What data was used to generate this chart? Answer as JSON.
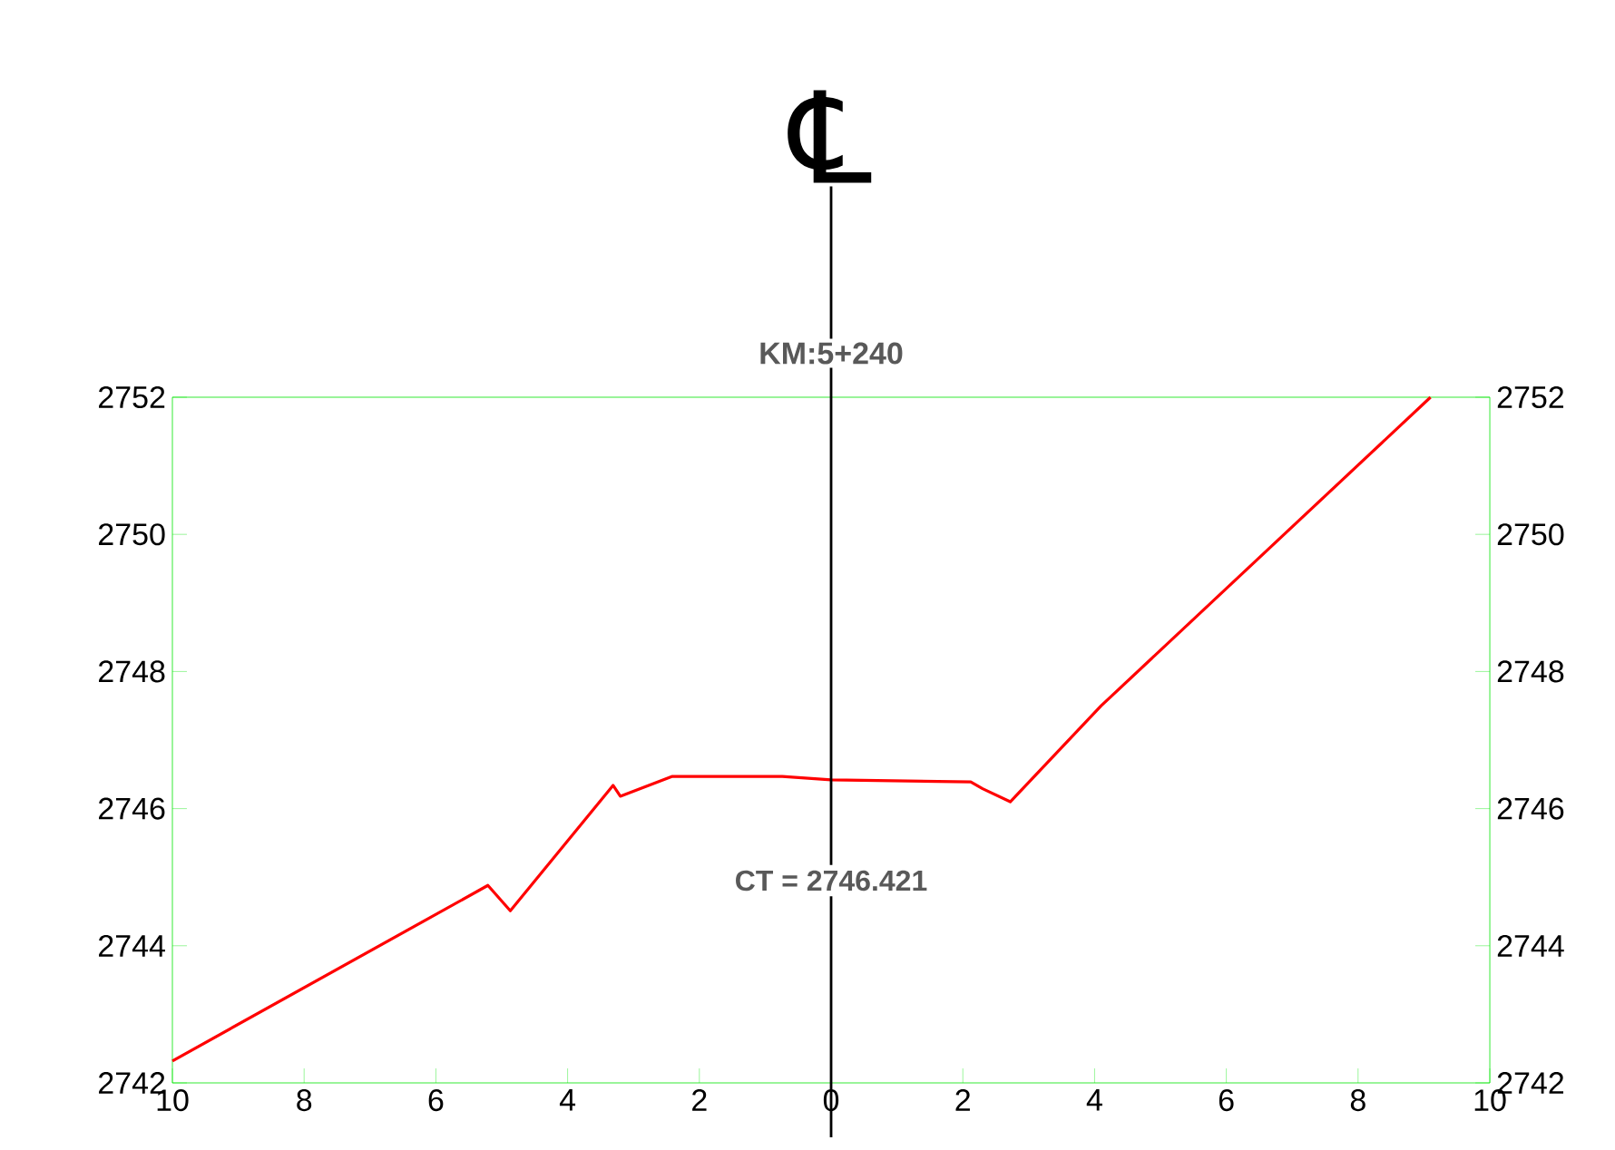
{
  "chart_data": {
    "type": "line",
    "x": [
      -10,
      -5.21,
      -4.87,
      -3.31,
      -3.2,
      -2.41,
      -0.74,
      0,
      2.12,
      2.3,
      2.72,
      4.1,
      9.1
    ],
    "series": [
      {
        "color": "#ff0000",
        "values": [
          2742.32,
          2744.88,
          2744.51,
          2746.34,
          2746.18,
          2746.47,
          2746.47,
          2746.42,
          2746.39,
          2746.29,
          2746.1,
          2747.5,
          2752.0
        ]
      }
    ],
    "xlim": [
      -10,
      10
    ],
    "xticks": [
      {
        "value": -10,
        "label": "10"
      },
      {
        "value": -8,
        "label": "8"
      },
      {
        "value": -6,
        "label": "6"
      },
      {
        "value": -4,
        "label": "4"
      },
      {
        "value": -2,
        "label": "2"
      },
      0,
      2,
      4,
      6,
      8,
      10
    ],
    "ylim": [
      2742,
      2752
    ],
    "yticks": [
      2742,
      2744,
      2746,
      2748,
      2750,
      2752
    ],
    "y2lim": [
      2742,
      2752
    ],
    "y2ticks": [
      2742,
      2744,
      2746,
      2748,
      2750,
      2752
    ],
    "ref_lines": [
      {
        "axis": "x",
        "value": 0,
        "color": "#000000"
      }
    ],
    "annotations": [
      "℄",
      "KM:5+240",
      "CT = 2746.421"
    ],
    "grid": false,
    "marker": "none",
    "line_style": "solid"
  }
}
